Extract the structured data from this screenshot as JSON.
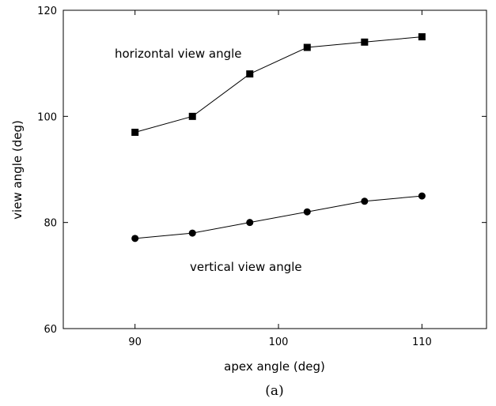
{
  "chart_data": {
    "type": "line",
    "x_label": "apex angle (deg)",
    "y_label": "view angle (deg)",
    "caption": "(a)",
    "x": [
      90,
      94,
      98,
      102,
      106,
      110
    ],
    "series": [
      {
        "name": "horizontal view angle",
        "color": "#000000",
        "marker": "square",
        "values": [
          97,
          100,
          108,
          113,
          114,
          115
        ]
      },
      {
        "name": "vertical view angle",
        "color": "#000000",
        "marker": "circle",
        "values": [
          77,
          78,
          80,
          82,
          84,
          85
        ]
      }
    ],
    "xlim": [
      85,
      114.5
    ],
    "xticks": [
      90,
      100,
      110
    ],
    "ylim": [
      60,
      120
    ],
    "yticks": [
      60,
      80,
      100,
      120
    ]
  }
}
